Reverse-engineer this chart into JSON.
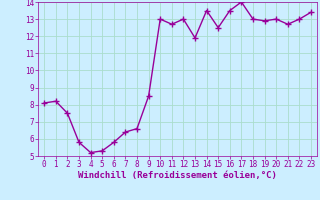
{
  "x": [
    0,
    1,
    2,
    3,
    4,
    5,
    6,
    7,
    8,
    9,
    10,
    11,
    12,
    13,
    14,
    15,
    16,
    17,
    18,
    19,
    20,
    21,
    22,
    23
  ],
  "y": [
    8.1,
    8.2,
    7.5,
    5.8,
    5.2,
    5.3,
    5.8,
    6.4,
    6.6,
    8.5,
    13.0,
    12.7,
    13.0,
    11.9,
    13.5,
    12.5,
    13.5,
    14.0,
    13.0,
    12.9,
    13.0,
    12.7,
    13.0,
    13.4
  ],
  "line_color": "#990099",
  "marker": "+",
  "marker_size": 4,
  "bg_color": "#cceeff",
  "grid_color": "#aaddcc",
  "xlabel": "Windchill (Refroidissement éolien,°C)",
  "xlim": [
    -0.5,
    23.5
  ],
  "ylim": [
    5,
    14
  ],
  "yticks": [
    5,
    6,
    7,
    8,
    9,
    10,
    11,
    12,
    13,
    14
  ],
  "xticks": [
    0,
    1,
    2,
    3,
    4,
    5,
    6,
    7,
    8,
    9,
    10,
    11,
    12,
    13,
    14,
    15,
    16,
    17,
    18,
    19,
    20,
    21,
    22,
    23
  ],
  "tick_color": "#990099",
  "tick_fontsize": 5.5,
  "xlabel_fontsize": 6.5,
  "line_width": 1.0
}
